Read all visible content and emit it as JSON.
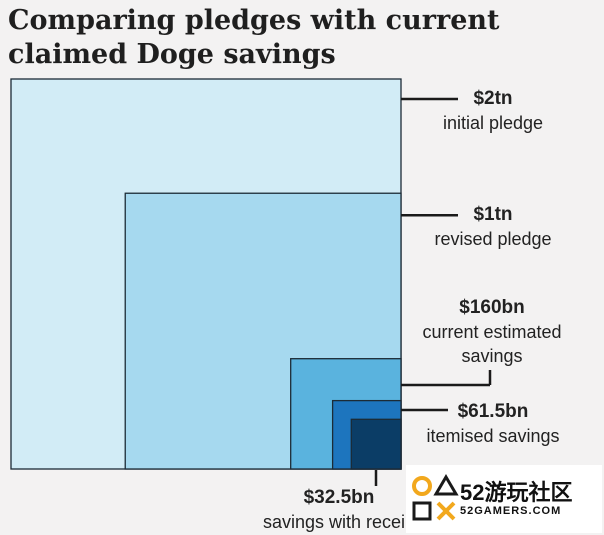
{
  "title": "Comparing pledges with current claimed Doge savings",
  "chart_data": {
    "type": "area",
    "unit": "USD",
    "items": [
      {
        "value_bn": 2000,
        "value_label": "$2tn",
        "label": "initial pledge",
        "color": "#d2ecf6"
      },
      {
        "value_bn": 1000,
        "value_label": "$1tn",
        "label": "revised pledge",
        "color": "#a6d9ef"
      },
      {
        "value_bn": 160,
        "value_label": "$160bn",
        "label": "current estimated savings",
        "color": "#5ab3de"
      },
      {
        "value_bn": 61.5,
        "value_label": "$61.5bn",
        "label": "itemised savings",
        "color": "#1d75be"
      },
      {
        "value_bn": 32.5,
        "value_label": "$32.5bn",
        "label": "savings with receip",
        "color": "#0b3d66"
      }
    ]
  },
  "watermark": {
    "brand": "52游玩社区",
    "site": "52GAMERS.COM"
  }
}
